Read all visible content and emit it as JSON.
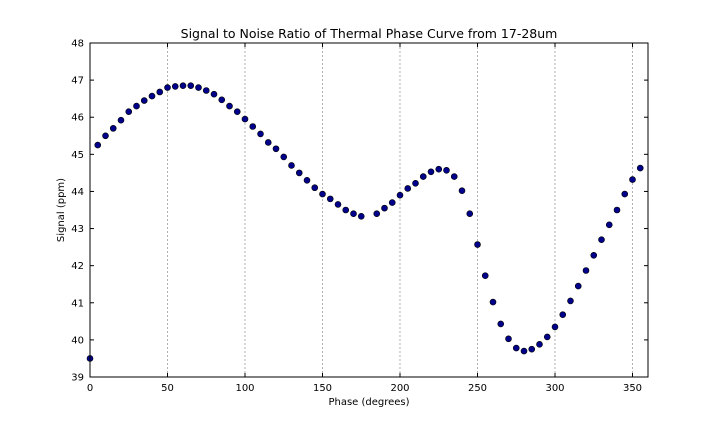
{
  "chart_data": {
    "type": "scatter",
    "title": "Signal to Noise Ratio of Thermal Phase Curve from 17-28um",
    "xlabel": "Phase (degrees)",
    "ylabel": "Signal (ppm)",
    "xlim": [
      0,
      360
    ],
    "ylim": [
      39,
      48
    ],
    "xticks": [
      0,
      50,
      100,
      150,
      200,
      250,
      300,
      350
    ],
    "yticks": [
      39,
      40,
      41,
      42,
      43,
      44,
      45,
      46,
      47,
      48
    ],
    "grid": "vertical-dashed",
    "marker_color": "#00008b",
    "x": [
      0,
      5,
      10,
      15,
      20,
      25,
      30,
      35,
      40,
      45,
      50,
      55,
      60,
      65,
      70,
      75,
      80,
      85,
      90,
      95,
      100,
      105,
      110,
      115,
      120,
      125,
      130,
      135,
      140,
      145,
      150,
      155,
      160,
      165,
      170,
      175,
      185,
      190,
      195,
      200,
      205,
      210,
      215,
      220,
      225,
      230,
      235,
      240,
      245,
      250,
      255,
      260,
      265,
      270,
      275,
      280,
      285,
      290,
      295,
      300,
      305,
      310,
      315,
      320,
      325,
      330,
      335,
      340,
      345,
      350,
      355
    ],
    "y": [
      39.5,
      45.25,
      45.5,
      45.7,
      45.92,
      46.15,
      46.3,
      46.45,
      46.57,
      46.68,
      46.8,
      46.83,
      46.85,
      46.85,
      46.8,
      46.72,
      46.62,
      46.47,
      46.3,
      46.15,
      45.95,
      45.75,
      45.55,
      45.32,
      45.15,
      44.93,
      44.7,
      44.5,
      44.3,
      44.1,
      43.93,
      43.8,
      43.65,
      43.5,
      43.4,
      43.33,
      43.4,
      43.55,
      43.7,
      43.9,
      44.08,
      44.22,
      44.4,
      44.53,
      44.6,
      44.57,
      44.4,
      44.02,
      43.4,
      42.57,
      41.73,
      41.02,
      40.43,
      40.03,
      39.78,
      39.7,
      39.75,
      39.88,
      40.08,
      40.35,
      40.68,
      41.05,
      41.45,
      41.87,
      42.28,
      42.7,
      43.1,
      43.5,
      43.93,
      44.32,
      44.63
    ]
  }
}
